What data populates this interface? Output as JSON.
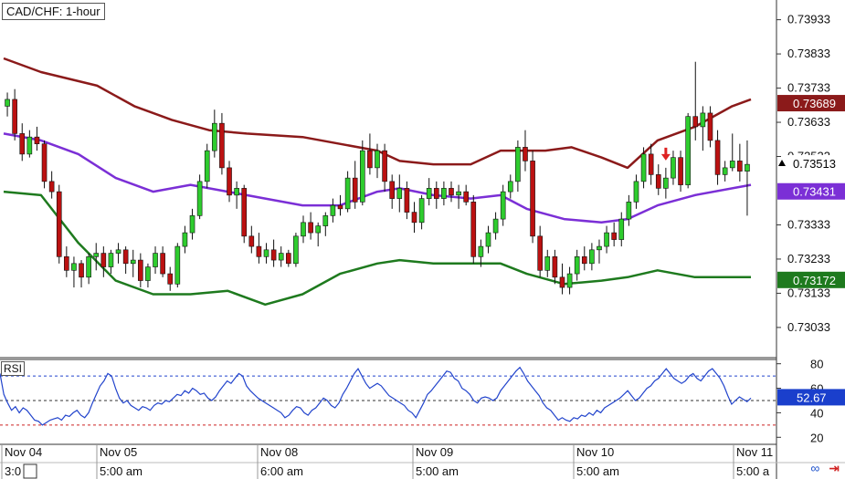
{
  "header": {
    "title": "CAD/CHF: 1-hour"
  },
  "rsi_panel": {
    "label": "RSI"
  },
  "chart_data": [
    {
      "type": "candlestick",
      "title": "CAD/CHF: 1-hour",
      "x_labels": [
        "Nov 04",
        "Nov 05",
        "Nov 08",
        "Nov 09",
        "Nov 10",
        "Nov 11"
      ],
      "x_labels_bottom": [
        "3:0",
        "5:00 am",
        "6:00 am",
        "5:00 am",
        "5:00 am",
        "5:00 a"
      ],
      "y_ticks": [
        "0.73933",
        "0.73833",
        "0.73733",
        "0.73633",
        "0.73533",
        "0.73333",
        "0.73233",
        "0.73133",
        "0.73033"
      ],
      "ylim": [
        0.7295,
        0.7398
      ],
      "price_tags": [
        {
          "value": "0.73689",
          "color": "#8b1a1a"
        },
        {
          "value": "0.73513",
          "color": "#000000"
        },
        {
          "value": "0.73431",
          "color": "#7b2fd6"
        },
        {
          "value": "0.73172",
          "color": "#1e7a1e"
        }
      ],
      "bands": {
        "upper_color": "#8b1a1a",
        "middle_color": "#7b2fd6",
        "lower_color": "#1e7a1e",
        "upper": [
          [
            0,
            0.7382
          ],
          [
            10,
            0.7378
          ],
          [
            25,
            0.7374
          ],
          [
            35,
            0.7368
          ],
          [
            45,
            0.7364
          ],
          [
            55,
            0.7361
          ],
          [
            65,
            0.736
          ],
          [
            80,
            0.7359
          ],
          [
            90,
            0.7357
          ],
          [
            100,
            0.7355
          ],
          [
            106,
            0.7352
          ],
          [
            115,
            0.7351
          ],
          [
            125,
            0.7351
          ],
          [
            133,
            0.7355
          ],
          [
            145,
            0.7355
          ],
          [
            152,
            0.7356
          ],
          [
            160,
            0.7353
          ],
          [
            167,
            0.735
          ],
          [
            175,
            0.7358
          ],
          [
            185,
            0.7362
          ],
          [
            195,
            0.7368
          ],
          [
            200,
            0.737
          ]
        ],
        "middle": [
          [
            0,
            0.736
          ],
          [
            10,
            0.7358
          ],
          [
            20,
            0.7354
          ],
          [
            30,
            0.7347
          ],
          [
            40,
            0.7343
          ],
          [
            50,
            0.7345
          ],
          [
            60,
            0.7343
          ],
          [
            70,
            0.7341
          ],
          [
            80,
            0.7339
          ],
          [
            90,
            0.7339
          ],
          [
            100,
            0.7343
          ],
          [
            106,
            0.7344
          ],
          [
            115,
            0.7342
          ],
          [
            125,
            0.7341
          ],
          [
            133,
            0.7342
          ],
          [
            140,
            0.7338
          ],
          [
            150,
            0.7335
          ],
          [
            160,
            0.7334
          ],
          [
            167,
            0.7335
          ],
          [
            175,
            0.7339
          ],
          [
            185,
            0.7342
          ],
          [
            200,
            0.7345
          ]
        ],
        "lower": [
          [
            0,
            0.7343
          ],
          [
            10,
            0.7342
          ],
          [
            20,
            0.7328
          ],
          [
            30,
            0.7317
          ],
          [
            40,
            0.7313
          ],
          [
            50,
            0.7313
          ],
          [
            60,
            0.7314
          ],
          [
            70,
            0.731
          ],
          [
            80,
            0.7313
          ],
          [
            90,
            0.7319
          ],
          [
            100,
            0.7322
          ],
          [
            106,
            0.7323
          ],
          [
            115,
            0.7322
          ],
          [
            125,
            0.7322
          ],
          [
            133,
            0.7322
          ],
          [
            140,
            0.7319
          ],
          [
            150,
            0.7316
          ],
          [
            160,
            0.7317
          ],
          [
            167,
            0.7318
          ],
          [
            175,
            0.732
          ],
          [
            185,
            0.7318
          ],
          [
            200,
            0.7318
          ]
        ]
      },
      "candles": [
        [
          0.7368,
          0.7372,
          0.7365,
          0.737
        ],
        [
          0.737,
          0.7373,
          0.7358,
          0.736
        ],
        [
          0.736,
          0.7363,
          0.7352,
          0.7354
        ],
        [
          0.7354,
          0.7361,
          0.7353,
          0.7359
        ],
        [
          0.7359,
          0.7362,
          0.7355,
          0.7357
        ],
        [
          0.7357,
          0.7358,
          0.7344,
          0.7346
        ],
        [
          0.7346,
          0.7349,
          0.7341,
          0.7343
        ],
        [
          0.7343,
          0.7345,
          0.7322,
          0.7324
        ],
        [
          0.7324,
          0.7327,
          0.7318,
          0.732
        ],
        [
          0.732,
          0.7324,
          0.7315,
          0.7322
        ],
        [
          0.7322,
          0.7323,
          0.7315,
          0.7318
        ],
        [
          0.7318,
          0.7325,
          0.7316,
          0.7324
        ],
        [
          0.7324,
          0.7328,
          0.732,
          0.7325
        ],
        [
          0.7325,
          0.7327,
          0.7318,
          0.7321
        ],
        [
          0.7321,
          0.7326,
          0.7319,
          0.7325
        ],
        [
          0.7325,
          0.7328,
          0.7322,
          0.7326
        ],
        [
          0.7326,
          0.7327,
          0.7319,
          0.7322
        ],
        [
          0.7322,
          0.7326,
          0.7318,
          0.7323
        ],
        [
          0.7323,
          0.7325,
          0.7315,
          0.7317
        ],
        [
          0.7317,
          0.7322,
          0.7315,
          0.7321
        ],
        [
          0.7321,
          0.7327,
          0.7319,
          0.7325
        ],
        [
          0.7325,
          0.7327,
          0.7318,
          0.7319
        ],
        [
          0.7319,
          0.7321,
          0.7314,
          0.7316
        ],
        [
          0.7316,
          0.7328,
          0.7315,
          0.7327
        ],
        [
          0.7327,
          0.7333,
          0.7325,
          0.7331
        ],
        [
          0.7331,
          0.7338,
          0.7329,
          0.7336
        ],
        [
          0.7336,
          0.7348,
          0.7335,
          0.7346
        ],
        [
          0.7346,
          0.7357,
          0.7344,
          0.7355
        ],
        [
          0.7355,
          0.7367,
          0.7353,
          0.7363
        ],
        [
          0.7363,
          0.7366,
          0.7348,
          0.735
        ],
        [
          0.735,
          0.7352,
          0.734,
          0.7342
        ],
        [
          0.7342,
          0.7346,
          0.7338,
          0.7344
        ],
        [
          0.7344,
          0.7345,
          0.7328,
          0.733
        ],
        [
          0.733,
          0.7333,
          0.7325,
          0.7327
        ],
        [
          0.7327,
          0.7331,
          0.7322,
          0.7324
        ],
        [
          0.7324,
          0.7328,
          0.7322,
          0.7326
        ],
        [
          0.7326,
          0.7329,
          0.7321,
          0.7323
        ],
        [
          0.7323,
          0.7327,
          0.7321,
          0.7325
        ],
        [
          0.7325,
          0.7326,
          0.7321,
          0.7322
        ],
        [
          0.7322,
          0.7331,
          0.7321,
          0.733
        ],
        [
          0.733,
          0.7336,
          0.7328,
          0.7334
        ],
        [
          0.7334,
          0.7337,
          0.7329,
          0.7331
        ],
        [
          0.7331,
          0.7334,
          0.7327,
          0.7333
        ],
        [
          0.7333,
          0.7337,
          0.733,
          0.7336
        ],
        [
          0.7336,
          0.7341,
          0.7334,
          0.7339
        ],
        [
          0.7339,
          0.7342,
          0.7336,
          0.7338
        ],
        [
          0.7338,
          0.7349,
          0.7337,
          0.7347
        ],
        [
          0.7347,
          0.7352,
          0.7338,
          0.734
        ],
        [
          0.734,
          0.7358,
          0.7339,
          0.7355
        ],
        [
          0.7355,
          0.736,
          0.7348,
          0.735
        ],
        [
          0.735,
          0.7357,
          0.7347,
          0.7355
        ],
        [
          0.7355,
          0.7357,
          0.7343,
          0.7346
        ],
        [
          0.7346,
          0.7348,
          0.7338,
          0.7341
        ],
        [
          0.7341,
          0.7348,
          0.7337,
          0.7344
        ],
        [
          0.7344,
          0.7346,
          0.7335,
          0.7337
        ],
        [
          0.7337,
          0.734,
          0.7331,
          0.7334
        ],
        [
          0.7334,
          0.7342,
          0.7332,
          0.7341
        ],
        [
          0.7341,
          0.7347,
          0.7339,
          0.7344
        ],
        [
          0.7344,
          0.7346,
          0.7338,
          0.7341
        ],
        [
          0.7341,
          0.7346,
          0.7339,
          0.7344
        ],
        [
          0.7344,
          0.7346,
          0.734,
          0.7342
        ],
        [
          0.7342,
          0.7345,
          0.7338,
          0.7343
        ],
        [
          0.7343,
          0.7345,
          0.7339,
          0.734
        ],
        [
          0.734,
          0.7342,
          0.7322,
          0.7324
        ],
        [
          0.7324,
          0.7329,
          0.7321,
          0.7327
        ],
        [
          0.7327,
          0.7333,
          0.7325,
          0.7331
        ],
        [
          0.7331,
          0.7337,
          0.7329,
          0.7335
        ],
        [
          0.7335,
          0.7345,
          0.7333,
          0.7343
        ],
        [
          0.7343,
          0.7348,
          0.7341,
          0.7346
        ],
        [
          0.7346,
          0.7358,
          0.7343,
          0.7356
        ],
        [
          0.7356,
          0.7361,
          0.7349,
          0.7352
        ],
        [
          0.7352,
          0.7355,
          0.7328,
          0.733
        ],
        [
          0.733,
          0.7333,
          0.7318,
          0.732
        ],
        [
          0.732,
          0.7326,
          0.7318,
          0.7324
        ],
        [
          0.7324,
          0.7326,
          0.7316,
          0.7318
        ],
        [
          0.7318,
          0.7322,
          0.7313,
          0.7315
        ],
        [
          0.7315,
          0.7321,
          0.7313,
          0.7319
        ],
        [
          0.7319,
          0.7326,
          0.7317,
          0.7324
        ],
        [
          0.7324,
          0.7327,
          0.732,
          0.7322
        ],
        [
          0.7322,
          0.7328,
          0.732,
          0.7326
        ],
        [
          0.7326,
          0.7329,
          0.7322,
          0.7327
        ],
        [
          0.7327,
          0.7333,
          0.7325,
          0.7331
        ],
        [
          0.7331,
          0.7334,
          0.7327,
          0.7329
        ],
        [
          0.7329,
          0.7337,
          0.7327,
          0.7335
        ],
        [
          0.7335,
          0.7342,
          0.7333,
          0.734
        ],
        [
          0.734,
          0.7348,
          0.7338,
          0.7346
        ],
        [
          0.7346,
          0.7356,
          0.7344,
          0.7354
        ],
        [
          0.7354,
          0.7357,
          0.7345,
          0.7348
        ],
        [
          0.7348,
          0.7351,
          0.7342,
          0.7344
        ],
        [
          0.7344,
          0.735,
          0.7341,
          0.7347
        ],
        [
          0.7347,
          0.7355,
          0.7345,
          0.7353
        ],
        [
          0.7353,
          0.7355,
          0.7343,
          0.7345
        ],
        [
          0.7345,
          0.7366,
          0.7344,
          0.7365
        ],
        [
          0.7365,
          0.7381,
          0.7358,
          0.7362
        ],
        [
          0.7362,
          0.7368,
          0.7355,
          0.7366
        ],
        [
          0.7366,
          0.7368,
          0.7356,
          0.7358
        ],
        [
          0.7358,
          0.7361,
          0.7345,
          0.7348
        ],
        [
          0.7348,
          0.7352,
          0.7346,
          0.735
        ],
        [
          0.735,
          0.736,
          0.7349,
          0.7352
        ],
        [
          0.7352,
          0.7357,
          0.7346,
          0.7349
        ],
        [
          0.7349,
          0.7358,
          0.7336,
          0.7351
        ]
      ],
      "marker": {
        "index": 89,
        "symbol": "down-arrow",
        "color": "#dd2222"
      },
      "up_color": "#2ecc2e",
      "down_color": "#bb1111"
    },
    {
      "type": "line",
      "title": "RSI",
      "y_ticks": [
        "80",
        "60",
        "40",
        "20"
      ],
      "ylim": [
        15,
        82
      ],
      "levels": [
        {
          "value": 70,
          "color": "#2244cc"
        },
        {
          "value": 50,
          "color": "#333333"
        },
        {
          "value": 30,
          "color": "#cc2222"
        }
      ],
      "value_tag": {
        "value": "52.67",
        "color": "#1a3fcc"
      },
      "line_color": "#2244cc",
      "values": [
        72,
        55,
        48,
        42,
        45,
        40,
        44,
        42,
        38,
        34,
        33,
        30,
        32,
        34,
        35,
        36,
        34,
        38,
        37,
        40,
        42,
        38,
        36,
        40,
        48,
        55,
        62,
        66,
        72,
        70,
        60,
        52,
        48,
        50,
        46,
        44,
        42,
        45,
        44,
        42,
        46,
        48,
        47,
        50,
        49,
        52,
        55,
        54,
        58,
        56,
        60,
        58,
        55,
        56,
        52,
        50,
        53,
        58,
        62,
        66,
        64,
        68,
        72,
        70,
        62,
        58,
        55,
        52,
        50,
        48,
        46,
        44,
        42,
        40,
        36,
        38,
        42,
        45,
        44,
        40,
        38,
        42,
        44,
        48,
        52,
        50,
        46,
        44,
        48,
        55,
        60,
        66,
        72,
        76,
        70,
        64,
        60,
        62,
        64,
        62,
        58,
        54,
        52,
        50,
        48,
        46,
        42,
        40,
        36,
        42,
        48,
        55,
        58,
        62,
        66,
        70,
        74,
        73,
        68,
        66,
        60,
        58,
        55,
        50,
        48,
        52,
        53,
        52,
        50,
        52,
        58,
        62,
        66,
        70,
        74,
        77,
        72,
        66,
        62,
        58,
        54,
        48,
        44,
        42,
        38,
        34,
        36,
        34,
        33,
        36,
        35,
        38,
        37,
        40,
        38,
        42,
        40,
        44,
        46,
        48,
        50,
        52,
        55,
        58,
        54,
        50,
        52,
        56,
        60,
        62,
        66,
        68,
        72,
        76,
        72,
        68,
        66,
        64,
        66,
        70,
        72,
        68,
        66,
        70,
        74,
        76,
        72,
        68,
        62,
        54,
        47,
        50,
        53,
        51,
        49,
        52
      ]
    }
  ]
}
